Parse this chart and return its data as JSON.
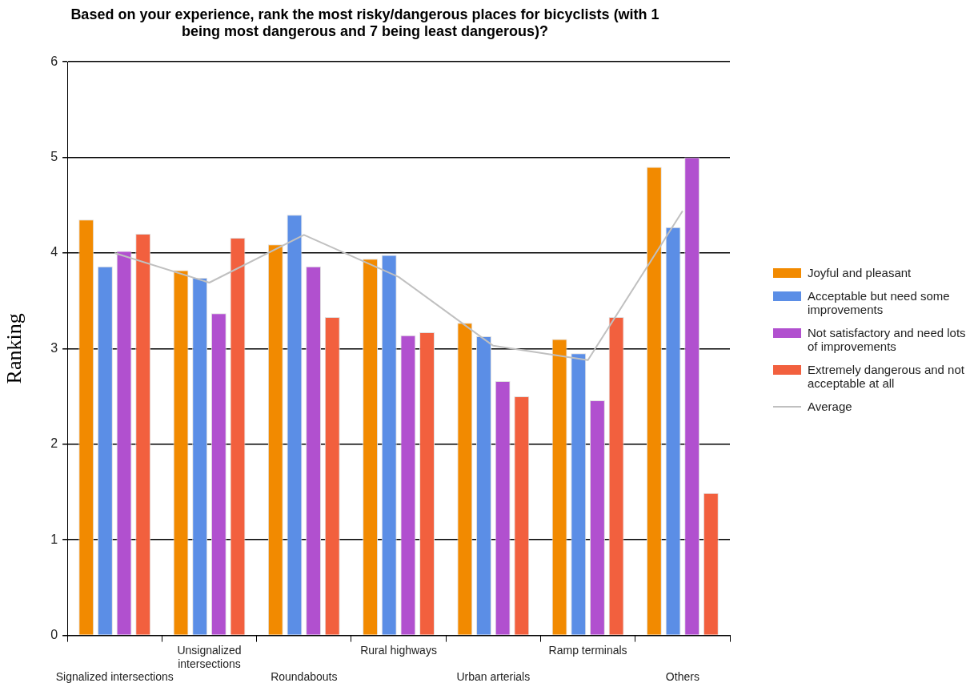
{
  "chart_data": {
    "type": "bar",
    "title": "Based on your experience, rank the most risky/dangerous places for bicyclists (with 1 being most dangerous and 7 being least dangerous)?",
    "ylabel": "Ranking",
    "categories": [
      "Signalized intersections",
      "Unsignalized intersections",
      "Roundabouts",
      "Rural highways",
      "Urban arterials",
      "Ramp terminals",
      "Others"
    ],
    "series": [
      {
        "name": "Joyful and pleasant",
        "color": "#f28a00",
        "values": [
          4.35,
          3.82,
          4.09,
          3.94,
          3.27,
          3.1,
          4.9
        ]
      },
      {
        "name": "Acceptable but need some improvements",
        "color": "#5b8ee6",
        "values": [
          3.86,
          3.74,
          4.4,
          3.98,
          3.13,
          2.95,
          4.27
        ]
      },
      {
        "name": "Not satisfactory and need lots of improvements",
        "color": "#b150cf",
        "values": [
          4.02,
          3.37,
          3.86,
          3.14,
          2.66,
          2.46,
          5.0
        ]
      },
      {
        "name": "Extremely dangerous and not acceptable at all",
        "color": "#f2603e",
        "values": [
          4.2,
          4.16,
          3.33,
          3.17,
          2.5,
          3.33,
          1.49
        ]
      },
      {
        "name": "Average",
        "type": "line",
        "color": "#c0c0c0",
        "values": [
          4.0,
          3.69,
          4.19,
          3.75,
          3.03,
          2.88,
          4.44
        ]
      }
    ],
    "ylim": [
      0,
      6
    ],
    "yticks": [
      0,
      1,
      2,
      3,
      4,
      5,
      6
    ],
    "grid": "y",
    "legend": "right",
    "marker": "none"
  }
}
